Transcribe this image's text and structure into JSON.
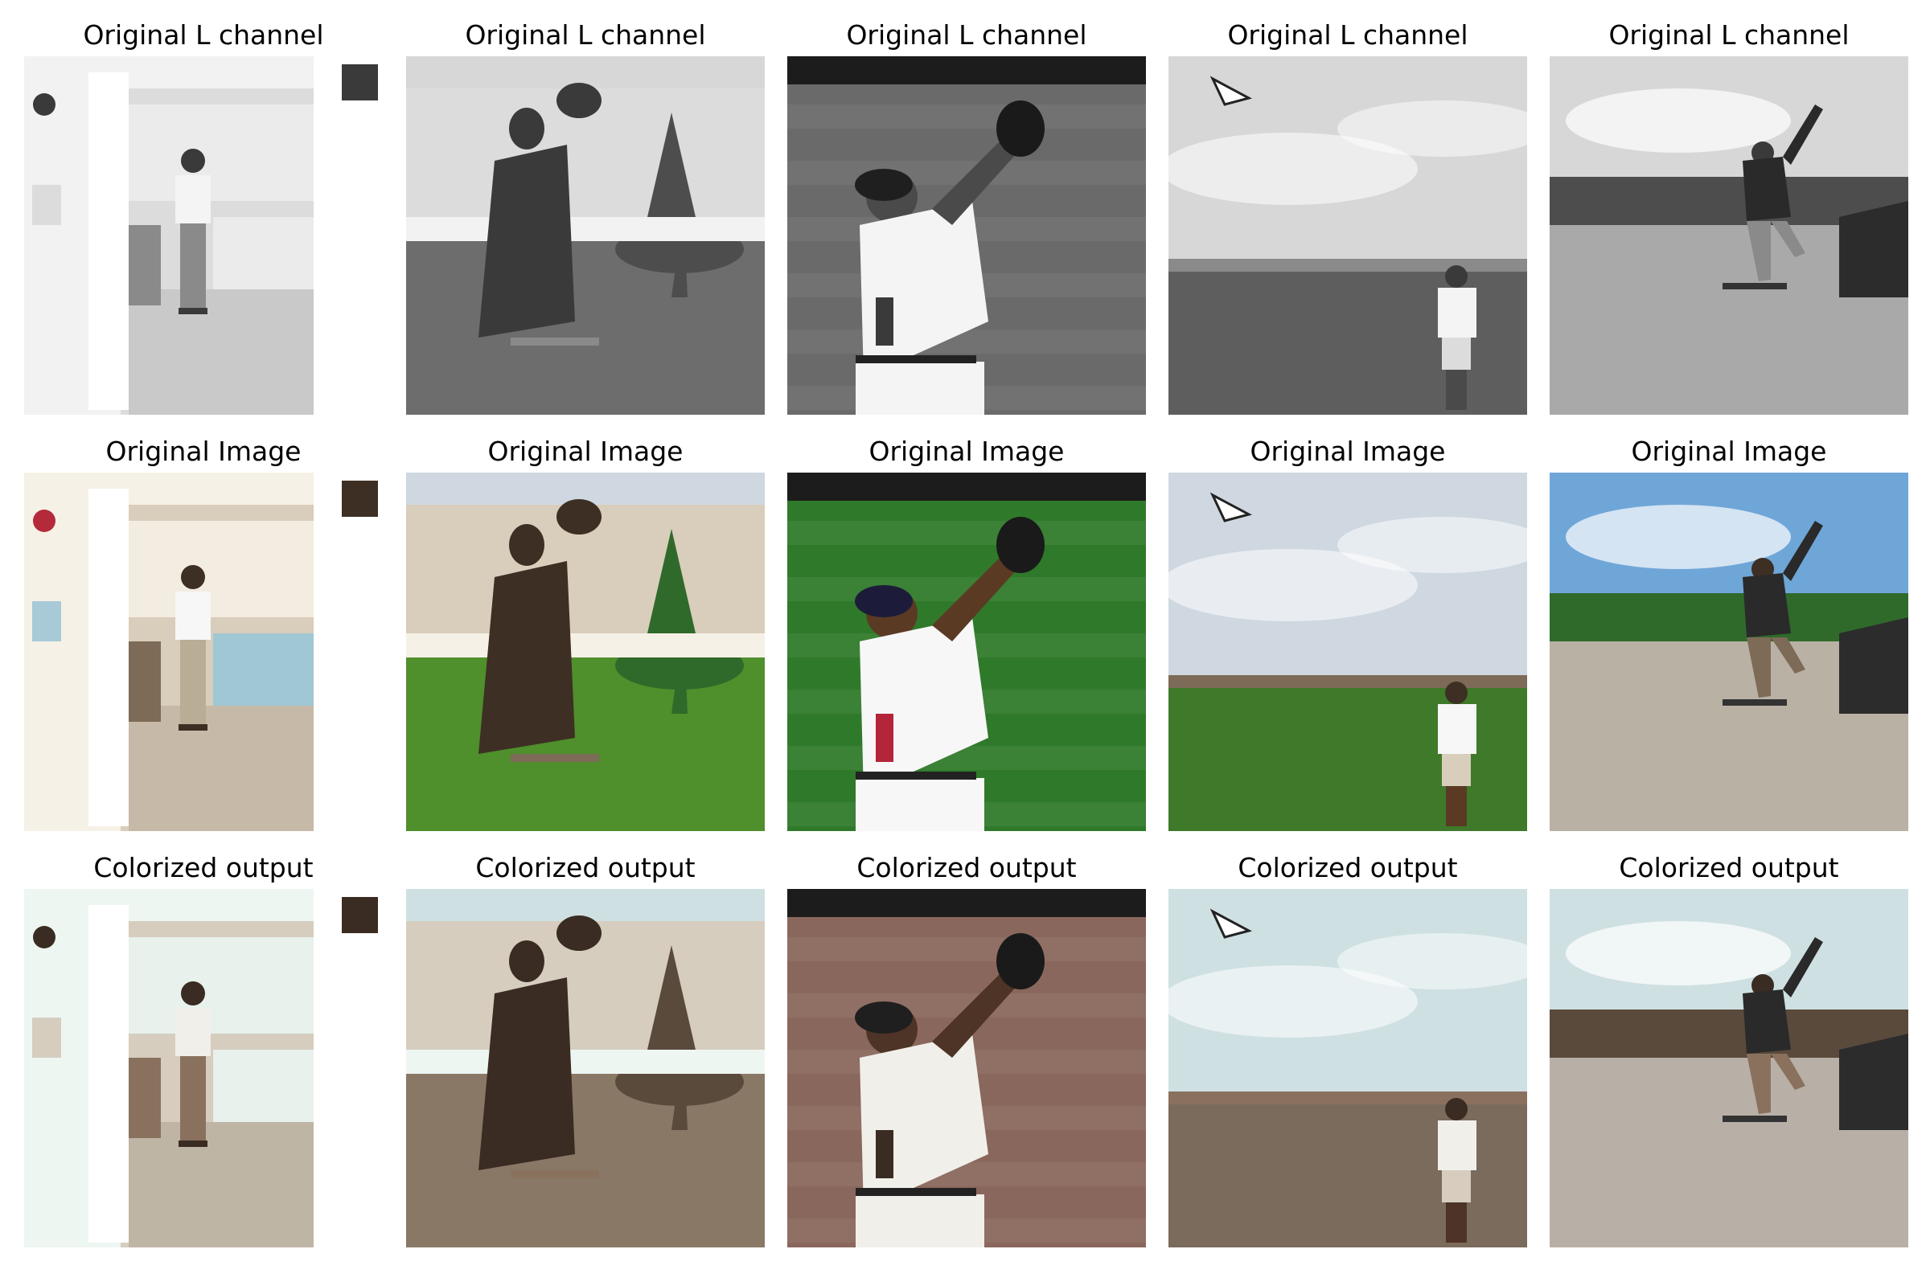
{
  "row_titles": [
    "Original L channel",
    "Original Image",
    "Colorized output"
  ],
  "rows": [
    {
      "title": "Original L channel",
      "mode": "gray"
    },
    {
      "title": "Original Image",
      "mode": "color"
    },
    {
      "title": "Colorized output",
      "mode": "sepia"
    }
  ],
  "columns": [
    {
      "scene": "woman-in-bathroom-doorway"
    },
    {
      "scene": "bronze-statue-on-lawn"
    },
    {
      "scene": "baseball-player-catching"
    },
    {
      "scene": "kites-over-grass-field"
    },
    {
      "scene": "skateboarder-at-skatepark"
    }
  ]
}
